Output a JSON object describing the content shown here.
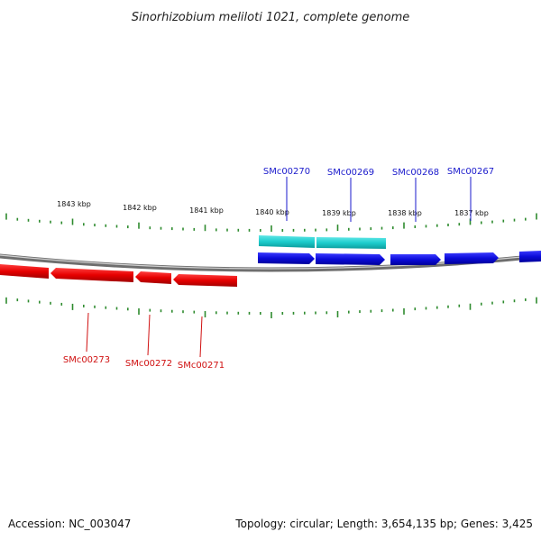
{
  "title": "Sinorhizobium meliloti 1021, complete genome",
  "footer": {
    "accession": "Accession: NC_003047",
    "summary": "Topology: circular; Length: 3,654,135 bp; Genes: 3,425"
  },
  "colors": {
    "forward_gene": "#0b0bd8",
    "reverse_gene": "#e60000",
    "feature_band": "#1ccccc",
    "ticks": "#2e8b2e",
    "backbone": "#888888"
  },
  "scale": {
    "labels": [
      "1843 kbp",
      "1842 kbp",
      "1841 kbp",
      "1840 kbp",
      "1839 kbp",
      "1838 kbp",
      "1837 kbp"
    ]
  },
  "genes_forward": [
    {
      "name": "SMc00270"
    },
    {
      "name": "SMc00269"
    },
    {
      "name": "SMc00268"
    },
    {
      "name": "SMc00267"
    }
  ],
  "genes_reverse": [
    {
      "name": "SMc00273"
    },
    {
      "name": "SMc00272"
    },
    {
      "name": "SMc00271"
    }
  ]
}
